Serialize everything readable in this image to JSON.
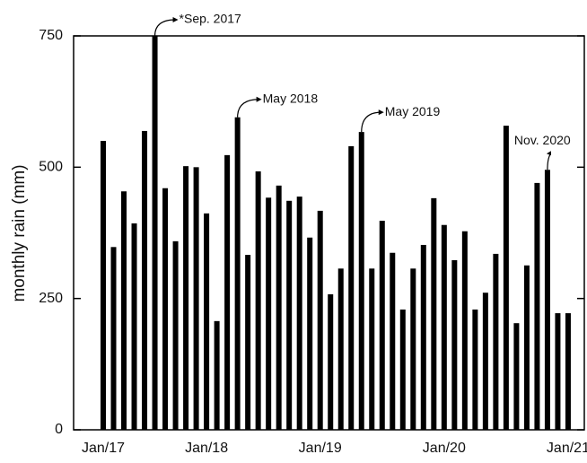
{
  "chart_data": {
    "type": "bar",
    "y_label": "monthly rain (mm)",
    "categories": [
      "Jan/17",
      null,
      null,
      null,
      null,
      null,
      null,
      null,
      null,
      null,
      "Jan/18",
      null,
      null,
      null,
      null,
      null,
      null,
      null,
      null,
      null,
      null,
      "Jan/19",
      null,
      null,
      null,
      null,
      null,
      null,
      null,
      null,
      null,
      null,
      null,
      "Jan/20",
      null,
      null,
      null,
      null,
      null,
      null,
      null,
      null,
      null,
      null,
      null,
      "Jan/21"
    ],
    "values": [
      550,
      348,
      454,
      393,
      569,
      750,
      460,
      359,
      502,
      500,
      412,
      207,
      523,
      595,
      333,
      492,
      442,
      465,
      436,
      444,
      366,
      417,
      258,
      307,
      540,
      567,
      307,
      398,
      337,
      229,
      307,
      352,
      441,
      390,
      323,
      378,
      229,
      261,
      335,
      579,
      203,
      313,
      470,
      495,
      222,
      222
    ],
    "color": "#000000",
    "ylim": [
      0,
      750
    ],
    "yticks": [
      0,
      250,
      500,
      750
    ],
    "annotations": [
      "*Sep. 2017",
      "May 2018",
      "May 2019",
      "Nov. 2020"
    ]
  }
}
